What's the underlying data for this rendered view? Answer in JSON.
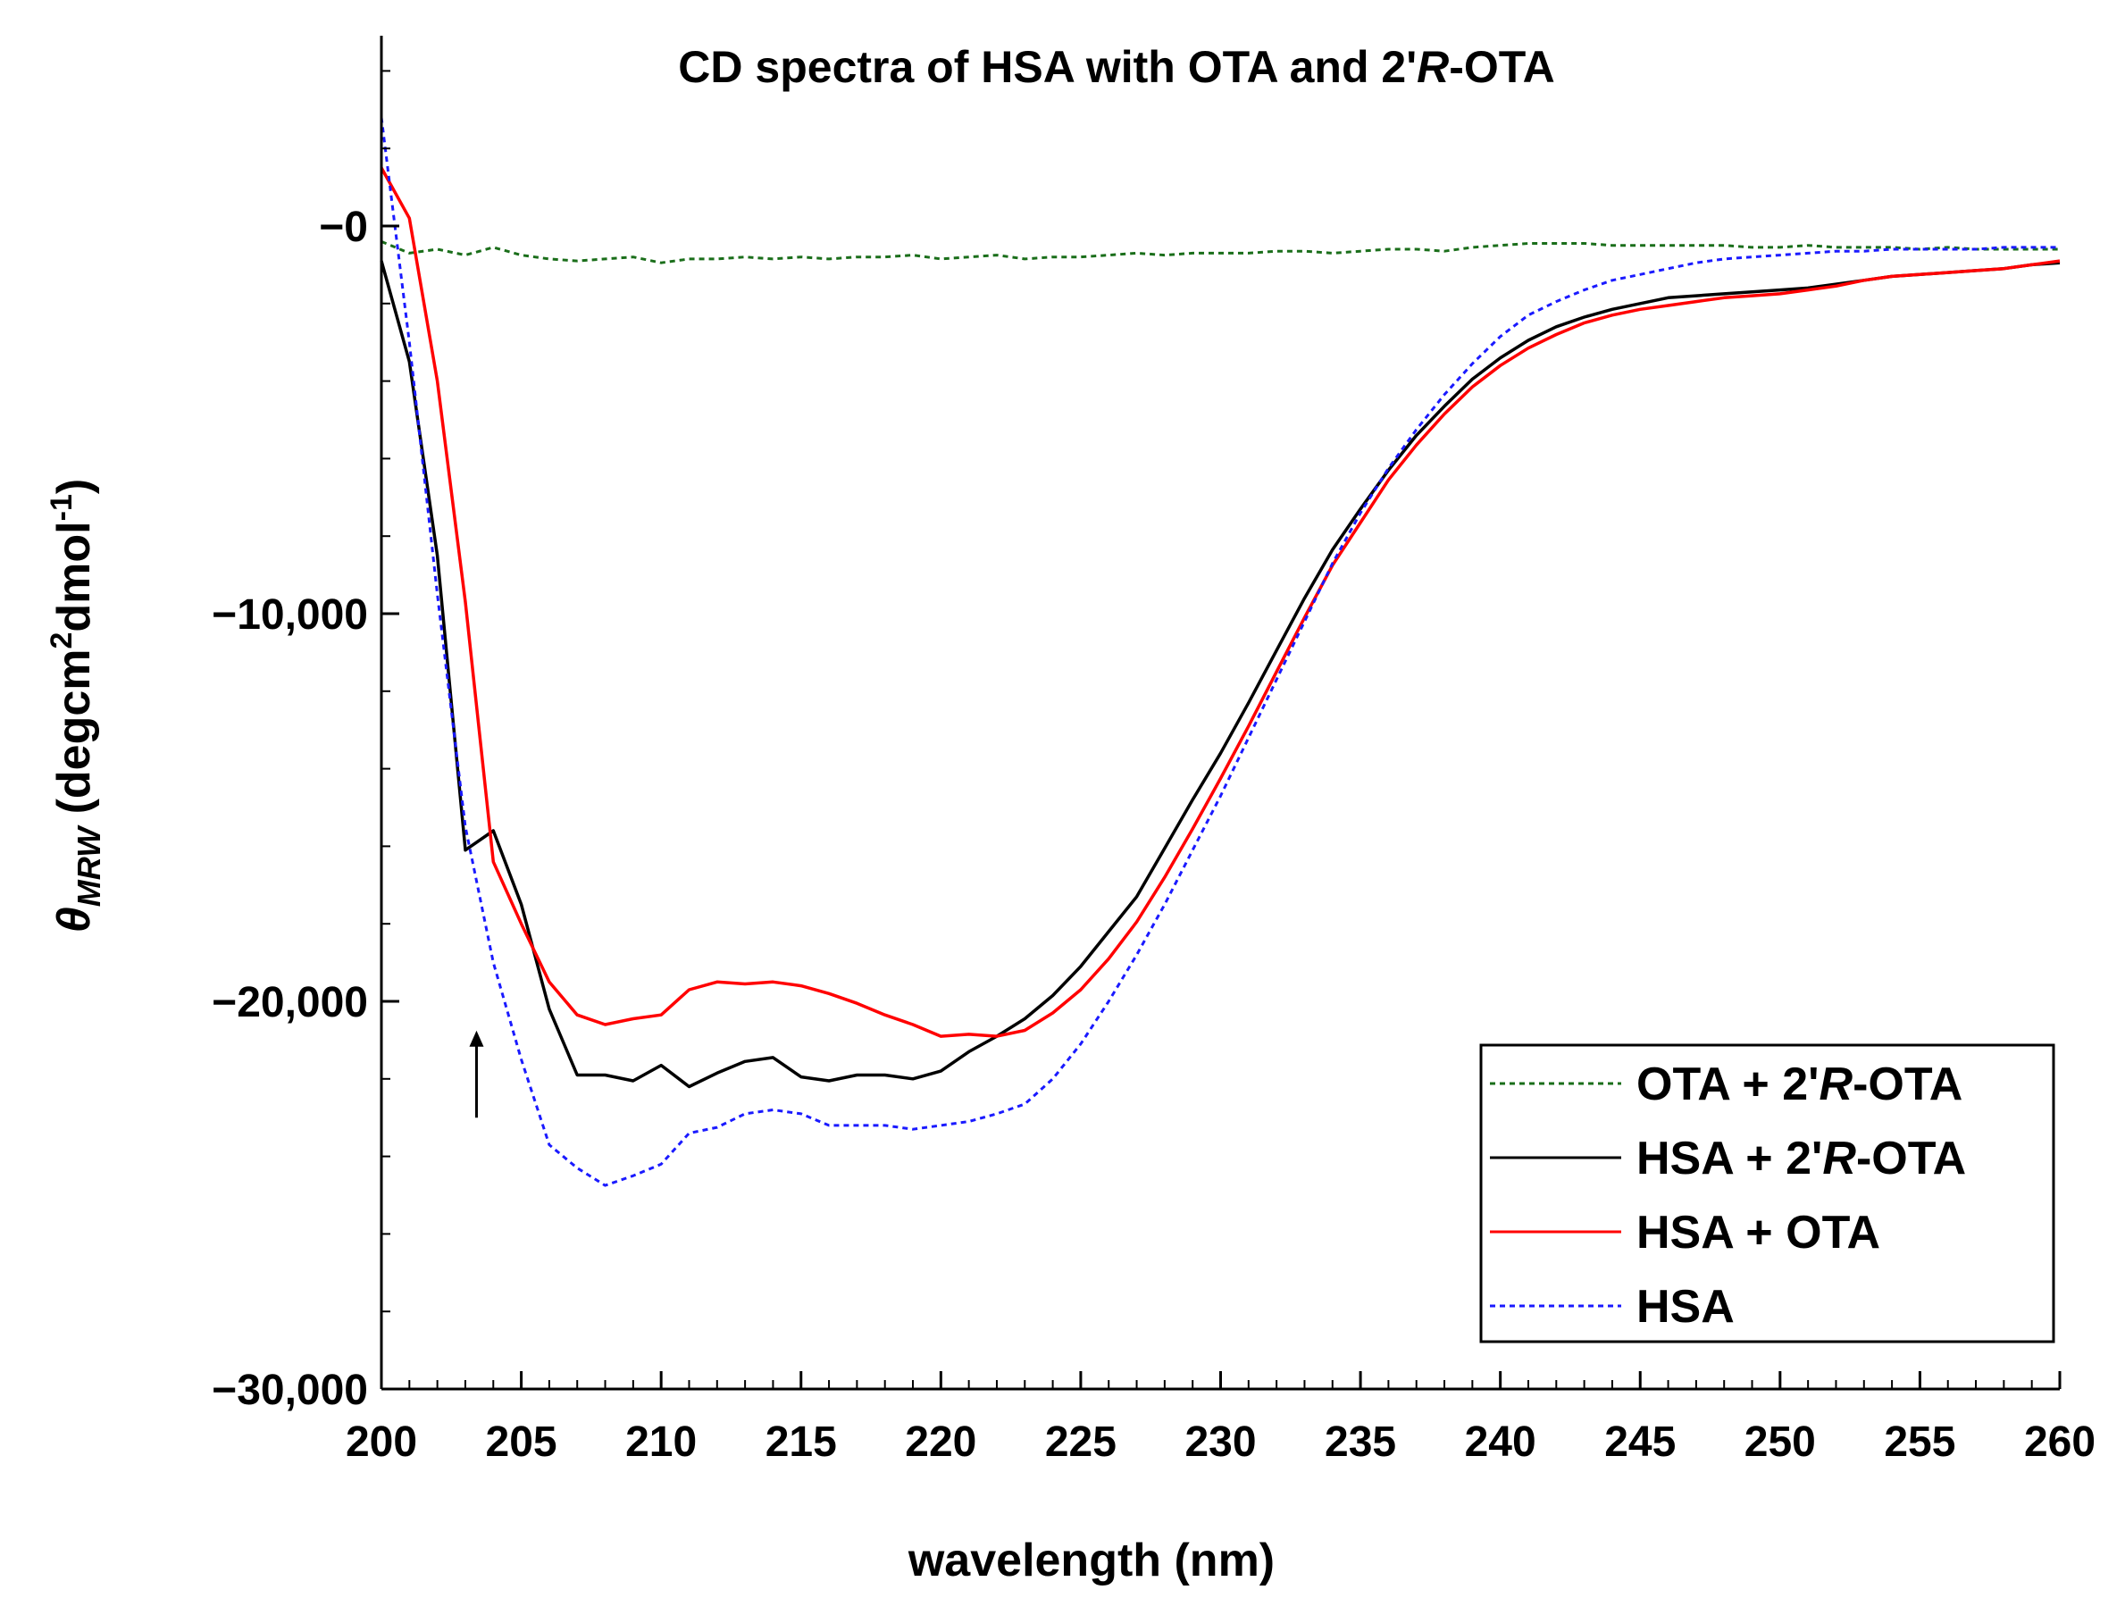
{
  "chart_data": {
    "type": "line",
    "title_main": "CD spectra of HSA with OTA and 2'",
    "title_italic": "R",
    "title_end": "-OTA",
    "xlabel": "wavelength (nm)",
    "ylabel_symbol": "θ",
    "ylabel_sub": "MRW",
    "ylabel_unit_a": " (degcm",
    "ylabel_sup_a": "2",
    "ylabel_unit_b": "dmol",
    "ylabel_sup_b": "-1",
    "ylabel_unit_c": ")",
    "xlim": [
      200,
      260
    ],
    "ylim": [
      -30000,
      5000
    ],
    "x_ticks": [
      200,
      205,
      210,
      215,
      220,
      225,
      230,
      235,
      240,
      245,
      250,
      255,
      260
    ],
    "x_tick_labels": [
      "200",
      "205",
      "210",
      "215",
      "220",
      "225",
      "230",
      "235",
      "240",
      "245",
      "250",
      "255",
      "260"
    ],
    "y_ticks": [
      0,
      -10000,
      -20000,
      -30000
    ],
    "y_tick_labels": [
      "−0",
      "−10,000",
      "−20,000",
      "−30,000"
    ],
    "legend_position": "bottom-right",
    "series": [
      {
        "name": "OTA + 2'R-OTA",
        "label_main": "OTA + 2'",
        "label_italic": "R",
        "label_end": "-OTA",
        "color": "#1a6e1a",
        "dash": "dotted",
        "x": [
          200,
          201,
          202,
          203,
          204,
          205,
          206,
          207,
          208,
          209,
          210,
          211,
          212,
          213,
          214,
          215,
          216,
          217,
          218,
          219,
          220,
          221,
          222,
          223,
          224,
          225,
          226,
          227,
          228,
          229,
          230,
          231,
          232,
          233,
          234,
          235,
          236,
          237,
          238,
          239,
          240,
          241,
          242,
          243,
          244,
          245,
          246,
          247,
          248,
          249,
          250,
          251,
          252,
          253,
          254,
          255,
          256,
          257,
          258,
          259,
          260
        ],
        "values": [
          -400,
          -700,
          -600,
          -750,
          -550,
          -750,
          -850,
          -900,
          -850,
          -800,
          -950,
          -850,
          -850,
          -800,
          -850,
          -800,
          -850,
          -800,
          -800,
          -750,
          -850,
          -800,
          -750,
          -850,
          -800,
          -800,
          -750,
          -700,
          -750,
          -700,
          -700,
          -700,
          -650,
          -650,
          -700,
          -650,
          -600,
          -600,
          -650,
          -550,
          -500,
          -450,
          -450,
          -450,
          -500,
          -500,
          -500,
          -500,
          -500,
          -550,
          -550,
          -500,
          -550,
          -550,
          -550,
          -600,
          -550,
          -600,
          -600,
          -600,
          -600
        ]
      },
      {
        "name": "HSA + 2'R-OTA",
        "label_main": "HSA + 2'",
        "label_italic": "R",
        "label_end": "-OTA",
        "color": "#000000",
        "dash": "solid",
        "x": [
          200,
          201,
          202,
          203,
          204,
          205,
          206,
          207,
          208,
          209,
          210,
          211,
          212,
          213,
          214,
          215,
          216,
          217,
          218,
          219,
          220,
          221,
          222,
          223,
          224,
          225,
          226,
          227,
          228,
          229,
          230,
          231,
          232,
          233,
          234,
          235,
          236,
          237,
          238,
          239,
          240,
          241,
          242,
          243,
          244,
          245,
          246,
          247,
          248,
          249,
          250,
          251,
          252,
          253,
          254,
          255,
          256,
          257,
          258,
          259,
          260
        ],
        "values": [
          -900,
          -3500,
          -8500,
          -16100,
          -15600,
          -17500,
          -20200,
          -21900,
          -21900,
          -22050,
          -21650,
          -22200,
          -21850,
          -21550,
          -21450,
          -21950,
          -22050,
          -21900,
          -21900,
          -22000,
          -21800,
          -21300,
          -20900,
          -20450,
          -19850,
          -19100,
          -18200,
          -17300,
          -16050,
          -14800,
          -13600,
          -12300,
          -10950,
          -9600,
          -8350,
          -7300,
          -6300,
          -5400,
          -4650,
          -3950,
          -3400,
          -2950,
          -2600,
          -2350,
          -2150,
          -2000,
          -1850,
          -1800,
          -1750,
          -1700,
          -1650,
          -1600,
          -1500,
          -1400,
          -1300,
          -1250,
          -1200,
          -1150,
          -1100,
          -1000,
          -950
        ]
      },
      {
        "name": "HSA + OTA",
        "label_main": "HSA + OTA",
        "label_italic": "",
        "label_end": "",
        "color": "#ff0000",
        "dash": "solid",
        "x": [
          200,
          201,
          202,
          203,
          204,
          205,
          206,
          207,
          208,
          209,
          210,
          211,
          212,
          213,
          214,
          215,
          216,
          217,
          218,
          219,
          220,
          221,
          222,
          223,
          224,
          225,
          226,
          227,
          228,
          229,
          230,
          231,
          232,
          233,
          234,
          235,
          236,
          237,
          238,
          239,
          240,
          241,
          242,
          243,
          244,
          245,
          246,
          247,
          248,
          249,
          250,
          251,
          252,
          253,
          254,
          255,
          256,
          257,
          258,
          259,
          260
        ],
        "values": [
          1500,
          200,
          -4000,
          -9700,
          -16400,
          -18000,
          -19500,
          -20350,
          -20600,
          -20450,
          -20350,
          -19700,
          -19500,
          -19550,
          -19500,
          -19600,
          -19800,
          -20050,
          -20350,
          -20600,
          -20900,
          -20850,
          -20900,
          -20750,
          -20300,
          -19700,
          -18900,
          -17950,
          -16800,
          -15550,
          -14250,
          -12900,
          -11500,
          -10100,
          -8750,
          -7650,
          -6550,
          -5650,
          -4850,
          -4150,
          -3600,
          -3150,
          -2800,
          -2500,
          -2300,
          -2150,
          -2050,
          -1950,
          -1850,
          -1800,
          -1750,
          -1650,
          -1550,
          -1400,
          -1300,
          -1250,
          -1200,
          -1150,
          -1100,
          -1000,
          -900
        ]
      },
      {
        "name": "HSA",
        "label_main": "HSA",
        "label_italic": "",
        "label_end": "",
        "color": "#1a1aff",
        "dash": "dotted",
        "x": [
          200,
          201,
          202,
          203,
          204,
          205,
          206,
          207,
          208,
          209,
          210,
          211,
          212,
          213,
          214,
          215,
          216,
          217,
          218,
          219,
          220,
          221,
          222,
          223,
          224,
          225,
          226,
          227,
          228,
          229,
          230,
          231,
          232,
          233,
          234,
          235,
          236,
          237,
          238,
          239,
          240,
          241,
          242,
          243,
          244,
          245,
          246,
          247,
          248,
          249,
          250,
          251,
          252,
          253,
          254,
          255,
          256,
          257,
          258,
          259,
          260
        ],
        "values": [
          2800,
          -3000,
          -9500,
          -15500,
          -19000,
          -21500,
          -23700,
          -24300,
          -24750,
          -24500,
          -24200,
          -23400,
          -23250,
          -22900,
          -22800,
          -22900,
          -23200,
          -23200,
          -23200,
          -23300,
          -23200,
          -23100,
          -22900,
          -22650,
          -22000,
          -21100,
          -20000,
          -18800,
          -17500,
          -16100,
          -14700,
          -13200,
          -11700,
          -10200,
          -8700,
          -7400,
          -6250,
          -5250,
          -4350,
          -3550,
          -2850,
          -2300,
          -1950,
          -1650,
          -1400,
          -1250,
          -1100,
          -950,
          -850,
          -800,
          -750,
          -700,
          -650,
          -650,
          -600,
          -600,
          -600,
          -600,
          -550,
          -550,
          -550
        ]
      }
    ],
    "annotation": {
      "type": "arrow",
      "x": 203.4,
      "y_from": -23000,
      "y_to": -20800
    }
  }
}
